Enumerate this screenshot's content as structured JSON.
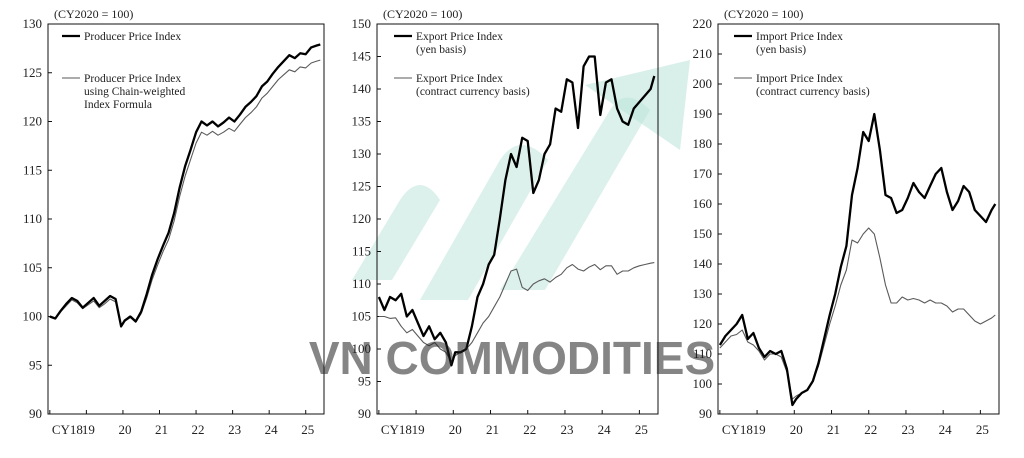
{
  "colors": {
    "main_series": "#000000",
    "secondary_series": "#5a5a5a",
    "watermark_text": "#c9cdd6",
    "watermark_arrow": "#b9e3d8"
  },
  "watermark": {
    "text": "VN COMMODITIES"
  },
  "chart_data": [
    {
      "type": "line",
      "unit_label": "(CY2020 = 100)",
      "ylim": [
        90,
        130
      ],
      "yticks": [
        90,
        95,
        100,
        105,
        110,
        115,
        120,
        125,
        130
      ],
      "xticks": [
        {
          "label": "CY18",
          "x": 2018
        },
        {
          "label": "19",
          "x": 2019
        },
        {
          "label": "20",
          "x": 2020
        },
        {
          "label": "21",
          "x": 2021
        },
        {
          "label": "22",
          "x": 2022
        },
        {
          "label": "23",
          "x": 2023
        },
        {
          "label": "24",
          "x": 2024
        },
        {
          "label": "25",
          "x": 2025
        }
      ],
      "xlim": [
        2017.95,
        2025.5
      ],
      "series": [
        {
          "name": "Producer Price Index",
          "style": "thick",
          "x": [
            2018.0,
            2018.15,
            2018.3,
            2018.45,
            2018.6,
            2018.75,
            2018.9,
            2019.05,
            2019.2,
            2019.35,
            2019.5,
            2019.65,
            2019.8,
            2019.95,
            2020.05,
            2020.2,
            2020.35,
            2020.5,
            2020.65,
            2020.8,
            2020.95,
            2021.1,
            2021.25,
            2021.4,
            2021.55,
            2021.7,
            2021.85,
            2022.0,
            2022.15,
            2022.3,
            2022.45,
            2022.6,
            2022.75,
            2022.9,
            2023.05,
            2023.2,
            2023.35,
            2023.5,
            2023.65,
            2023.8,
            2023.95,
            2024.1,
            2024.25,
            2024.4,
            2024.55,
            2024.7,
            2024.85,
            2025.0,
            2025.15,
            2025.3,
            2025.4
          ],
          "y": [
            100,
            99.8,
            100.6,
            101.3,
            101.9,
            101.6,
            100.9,
            101.4,
            101.9,
            101.1,
            101.6,
            102.1,
            101.8,
            99.0,
            99.6,
            100.0,
            99.5,
            100.5,
            102.3,
            104.3,
            105.9,
            107.3,
            108.6,
            110.6,
            113.2,
            115.4,
            117.1,
            118.9,
            120.0,
            119.6,
            120.0,
            119.5,
            119.9,
            120.4,
            120.0,
            120.7,
            121.5,
            122.0,
            122.6,
            123.6,
            124.1,
            124.9,
            125.6,
            126.2,
            126.8,
            126.5,
            127.0,
            126.9,
            127.6,
            127.8,
            127.9
          ]
        },
        {
          "name": "Producer Price Index using Chain-weighted Index Formula",
          "style": "thin",
          "x": [
            2018.0,
            2018.15,
            2018.3,
            2018.45,
            2018.6,
            2018.75,
            2018.9,
            2019.05,
            2019.2,
            2019.35,
            2019.5,
            2019.65,
            2019.8,
            2019.95,
            2020.05,
            2020.2,
            2020.35,
            2020.5,
            2020.65,
            2020.8,
            2020.95,
            2021.1,
            2021.25,
            2021.4,
            2021.55,
            2021.7,
            2021.85,
            2022.0,
            2022.15,
            2022.3,
            2022.45,
            2022.6,
            2022.75,
            2022.9,
            2023.05,
            2023.2,
            2023.35,
            2023.5,
            2023.65,
            2023.8,
            2023.95,
            2024.1,
            2024.25,
            2024.4,
            2024.55,
            2024.7,
            2024.85,
            2025.0,
            2025.15,
            2025.3,
            2025.4
          ],
          "y": [
            100,
            99.8,
            100.5,
            101.1,
            101.7,
            101.4,
            100.8,
            101.2,
            101.6,
            100.9,
            101.3,
            101.8,
            101.5,
            98.9,
            99.5,
            99.9,
            99.4,
            100.3,
            101.9,
            103.8,
            105.3,
            106.7,
            107.9,
            109.8,
            112.3,
            114.4,
            116.1,
            117.8,
            118.9,
            118.6,
            119.0,
            118.6,
            118.9,
            119.3,
            119.0,
            119.7,
            120.4,
            120.9,
            121.5,
            122.4,
            122.9,
            123.6,
            124.3,
            124.8,
            125.3,
            125.1,
            125.6,
            125.5,
            126.0,
            126.2,
            126.3
          ]
        }
      ]
    },
    {
      "type": "line",
      "unit_label": "(CY2020 = 100)",
      "ylim": [
        90,
        150
      ],
      "yticks": [
        90,
        95,
        100,
        105,
        110,
        115,
        120,
        125,
        130,
        135,
        140,
        145,
        150
      ],
      "xticks": [
        {
          "label": "CY18",
          "x": 2018
        },
        {
          "label": "19",
          "x": 2019
        },
        {
          "label": "20",
          "x": 2020
        },
        {
          "label": "21",
          "x": 2021
        },
        {
          "label": "22",
          "x": 2022
        },
        {
          "label": "23",
          "x": 2023
        },
        {
          "label": "24",
          "x": 2024
        },
        {
          "label": "25",
          "x": 2025
        }
      ],
      "xlim": [
        2017.95,
        2025.5
      ],
      "series": [
        {
          "name": "Export Price Index (yen basis)",
          "style": "thick",
          "x": [
            2018.0,
            2018.15,
            2018.3,
            2018.45,
            2018.6,
            2018.75,
            2018.9,
            2019.05,
            2019.2,
            2019.35,
            2019.5,
            2019.65,
            2019.8,
            2019.95,
            2020.05,
            2020.2,
            2020.35,
            2020.5,
            2020.65,
            2020.8,
            2020.95,
            2021.1,
            2021.25,
            2021.4,
            2021.55,
            2021.7,
            2021.85,
            2022.0,
            2022.15,
            2022.3,
            2022.45,
            2022.6,
            2022.75,
            2022.9,
            2023.05,
            2023.2,
            2023.35,
            2023.5,
            2023.65,
            2023.8,
            2023.95,
            2024.1,
            2024.25,
            2024.4,
            2024.55,
            2024.7,
            2024.85,
            2025.0,
            2025.15,
            2025.3,
            2025.4
          ],
          "y": [
            108,
            106,
            108,
            107.5,
            108.5,
            105,
            106,
            104,
            102,
            103.5,
            101.5,
            102.5,
            101,
            97.5,
            99.5,
            99.5,
            100,
            103.5,
            108,
            110,
            113,
            114.5,
            120,
            126,
            130,
            128,
            132.5,
            132,
            124,
            126,
            130,
            131.5,
            137,
            136.5,
            141.5,
            141,
            134,
            143.5,
            145,
            145,
            136,
            141,
            141.5,
            137,
            135,
            134.5,
            137,
            138,
            139,
            140,
            142
          ]
        },
        {
          "name": "Export Price Index (contract currency basis)",
          "style": "thin",
          "x": [
            2018.0,
            2018.15,
            2018.3,
            2018.45,
            2018.6,
            2018.75,
            2018.9,
            2019.05,
            2019.2,
            2019.35,
            2019.5,
            2019.65,
            2019.8,
            2019.95,
            2020.05,
            2020.2,
            2020.35,
            2020.5,
            2020.65,
            2020.8,
            2020.95,
            2021.1,
            2021.25,
            2021.4,
            2021.55,
            2021.7,
            2021.85,
            2022.0,
            2022.15,
            2022.3,
            2022.45,
            2022.6,
            2022.75,
            2022.9,
            2023.05,
            2023.2,
            2023.35,
            2023.5,
            2023.65,
            2023.8,
            2023.95,
            2024.1,
            2024.25,
            2024.4,
            2024.55,
            2024.7,
            2024.85,
            2025.0,
            2025.15,
            2025.3,
            2025.4
          ],
          "y": [
            105,
            105,
            104.7,
            104.8,
            103.5,
            102.5,
            103,
            102,
            101,
            100.5,
            101,
            100,
            99.5,
            98,
            99,
            99.5,
            100,
            101,
            102.5,
            104,
            105,
            106.5,
            108,
            110,
            112,
            112.3,
            109.5,
            109,
            110,
            110.5,
            110.8,
            110.3,
            111,
            111.5,
            112.5,
            113,
            112.3,
            112,
            112.6,
            113,
            112.2,
            112.8,
            112.8,
            111.5,
            112,
            112,
            112.5,
            112.8,
            113,
            113.2,
            113.3
          ]
        }
      ]
    },
    {
      "type": "line",
      "unit_label": "(CY2020 = 100)",
      "ylim": [
        90,
        220
      ],
      "yticks": [
        90,
        100,
        110,
        120,
        130,
        140,
        150,
        160,
        170,
        180,
        190,
        200,
        210,
        220
      ],
      "xticks": [
        {
          "label": "CY18",
          "x": 2018
        },
        {
          "label": "19",
          "x": 2019
        },
        {
          "label": "20",
          "x": 2020
        },
        {
          "label": "21",
          "x": 2021
        },
        {
          "label": "22",
          "x": 2022
        },
        {
          "label": "23",
          "x": 2023
        },
        {
          "label": "24",
          "x": 2024
        },
        {
          "label": "25",
          "x": 2025
        }
      ],
      "xlim": [
        2017.95,
        2025.5
      ],
      "series": [
        {
          "name": "Import Price Index (yen basis)",
          "style": "thick",
          "x": [
            2018.0,
            2018.15,
            2018.3,
            2018.45,
            2018.6,
            2018.75,
            2018.9,
            2019.05,
            2019.2,
            2019.35,
            2019.5,
            2019.65,
            2019.8,
            2019.95,
            2020.05,
            2020.2,
            2020.35,
            2020.5,
            2020.65,
            2020.8,
            2020.95,
            2021.1,
            2021.25,
            2021.4,
            2021.55,
            2021.7,
            2021.85,
            2022.0,
            2022.15,
            2022.3,
            2022.45,
            2022.6,
            2022.75,
            2022.9,
            2023.05,
            2023.2,
            2023.35,
            2023.5,
            2023.65,
            2023.8,
            2023.95,
            2024.1,
            2024.25,
            2024.4,
            2024.55,
            2024.7,
            2024.85,
            2025.0,
            2025.15,
            2025.3,
            2025.4
          ],
          "y": [
            113,
            116,
            118,
            120,
            123,
            115,
            117,
            112,
            109,
            111,
            110,
            111,
            105,
            93,
            95,
            97,
            98,
            101,
            107,
            115,
            123,
            130,
            139,
            146,
            163,
            172,
            184,
            181,
            190,
            178,
            163,
            162,
            157,
            158,
            162,
            167,
            164,
            162,
            166,
            170,
            172,
            164,
            158,
            161,
            166,
            164,
            158,
            156,
            154,
            158,
            160
          ]
        },
        {
          "name": "Import Price Index (contract currency basis)",
          "style": "thin",
          "x": [
            2018.0,
            2018.15,
            2018.3,
            2018.45,
            2018.6,
            2018.75,
            2018.9,
            2019.05,
            2019.2,
            2019.35,
            2019.5,
            2019.65,
            2019.8,
            2019.95,
            2020.05,
            2020.2,
            2020.35,
            2020.5,
            2020.65,
            2020.8,
            2020.95,
            2021.1,
            2021.25,
            2021.4,
            2021.55,
            2021.7,
            2021.85,
            2022.0,
            2022.15,
            2022.3,
            2022.45,
            2022.6,
            2022.75,
            2022.9,
            2023.05,
            2023.2,
            2023.35,
            2023.5,
            2023.65,
            2023.8,
            2023.95,
            2024.1,
            2024.25,
            2024.4,
            2024.55,
            2024.7,
            2024.85,
            2025.0,
            2025.15,
            2025.3,
            2025.4
          ],
          "y": [
            112,
            114,
            116,
            116.5,
            118,
            114,
            113,
            111,
            108,
            110,
            110,
            109,
            104,
            95,
            96,
            97,
            98,
            101,
            106,
            113,
            120,
            126,
            133,
            138,
            148,
            147,
            150,
            152,
            150,
            142,
            133,
            127,
            127,
            129,
            128,
            128.5,
            128,
            127,
            128,
            127,
            127,
            126,
            124,
            125,
            125,
            123,
            121,
            120,
            121,
            122,
            123
          ]
        }
      ]
    }
  ]
}
